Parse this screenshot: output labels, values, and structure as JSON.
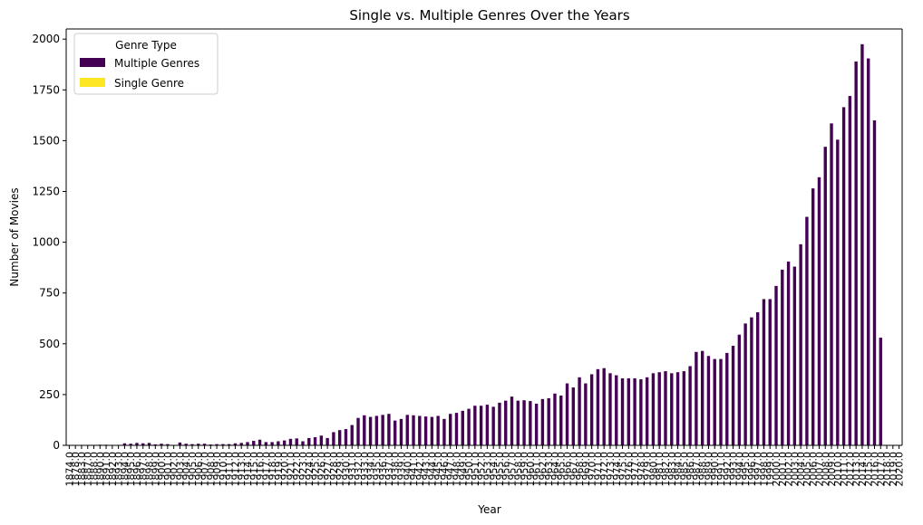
{
  "chart_data": {
    "type": "bar",
    "stacked": true,
    "title": "Single vs. Multiple Genres Over the Years",
    "xlabel": "Year",
    "ylabel": "Number of Movies",
    "ylim": [
      0,
      2050
    ],
    "yticks": [
      0,
      250,
      500,
      750,
      1000,
      1250,
      1500,
      1750,
      2000
    ],
    "grid": false,
    "legend": {
      "title": "Genre Type",
      "placement": "top-left"
    },
    "categories": [
      "1874.0",
      "1878.0",
      "1883.0",
      "1887.0",
      "1888.0",
      "1890.0",
      "1891.0",
      "1892.0",
      "1893.0",
      "1894.0",
      "1895.0",
      "1896.0",
      "1897.0",
      "1898.0",
      "1899.0",
      "1900.0",
      "1901.0",
      "1902.0",
      "1903.0",
      "1904.0",
      "1905.0",
      "1906.0",
      "1907.0",
      "1908.0",
      "1909.0",
      "1910.0",
      "1911.0",
      "1912.0",
      "1913.0",
      "1914.0",
      "1915.0",
      "1916.0",
      "1917.0",
      "1918.0",
      "1919.0",
      "1920.0",
      "1921.0",
      "1922.0",
      "1923.0",
      "1924.0",
      "1925.0",
      "1926.0",
      "1927.0",
      "1928.0",
      "1929.0",
      "1930.0",
      "1931.0",
      "1932.0",
      "1933.0",
      "1934.0",
      "1935.0",
      "1936.0",
      "1937.0",
      "1938.0",
      "1939.0",
      "1940.0",
      "1941.0",
      "1942.0",
      "1943.0",
      "1944.0",
      "1945.0",
      "1946.0",
      "1947.0",
      "1948.0",
      "1949.0",
      "1950.0",
      "1951.0",
      "1952.0",
      "1953.0",
      "1954.0",
      "1955.0",
      "1956.0",
      "1957.0",
      "1958.0",
      "1959.0",
      "1960.0",
      "1961.0",
      "1962.0",
      "1963.0",
      "1964.0",
      "1965.0",
      "1966.0",
      "1967.0",
      "1968.0",
      "1969.0",
      "1970.0",
      "1971.0",
      "1972.0",
      "1973.0",
      "1974.0",
      "1975.0",
      "1976.0",
      "1977.0",
      "1978.0",
      "1979.0",
      "1980.0",
      "1981.0",
      "1982.0",
      "1983.0",
      "1984.0",
      "1985.0",
      "1986.0",
      "1987.0",
      "1988.0",
      "1989.0",
      "1990.0",
      "1991.0",
      "1992.0",
      "1993.0",
      "1994.0",
      "1995.0",
      "1996.0",
      "1997.0",
      "1998.0",
      "1999.0",
      "2000.0",
      "2001.0",
      "2002.0",
      "2003.0",
      "2004.0",
      "2005.0",
      "2006.0",
      "2007.0",
      "2008.0",
      "2009.0",
      "2010.0",
      "2011.0",
      "2012.0",
      "2013.0",
      "2014.0",
      "2015.0",
      "2016.0",
      "2017.0",
      "2018.0",
      "2019.0",
      "2020.0"
    ],
    "series": [
      {
        "name": "Multiple Genres",
        "color": "#440154",
        "values": [
          0,
          0,
          0,
          0,
          0,
          3,
          3,
          2,
          0,
          10,
          8,
          12,
          10,
          12,
          5,
          8,
          6,
          2,
          14,
          8,
          6,
          8,
          8,
          4,
          6,
          6,
          6,
          10,
          12,
          16,
          22,
          28,
          16,
          16,
          20,
          24,
          32,
          34,
          20,
          36,
          40,
          48,
          36,
          65,
          75,
          80,
          100,
          135,
          148,
          140,
          145,
          150,
          155,
          122,
          130,
          150,
          148,
          145,
          142,
          140,
          145,
          130,
          155,
          160,
          170,
          180,
          195,
          195,
          200,
          190,
          210,
          220,
          240,
          220,
          222,
          218,
          205,
          228,
          232,
          255,
          245,
          305,
          285,
          335,
          305,
          350,
          375,
          380,
          355,
          345,
          330,
          330,
          330,
          325,
          335,
          355,
          360,
          365,
          355,
          360,
          365,
          390,
          460,
          465,
          440,
          425,
          425,
          455,
          490,
          545,
          600,
          630,
          655,
          720,
          720,
          785,
          865,
          905,
          880,
          990,
          1125,
          1265,
          1320,
          1470,
          1585,
          1505,
          1665,
          1720,
          1890,
          1975,
          1905,
          1600,
          530,
          0,
          0,
          0
        ]
      },
      {
        "name": "Single Genre",
        "color": "#fde725",
        "values": [
          0,
          0,
          0,
          0,
          0,
          0,
          0,
          0,
          0,
          0,
          0,
          0,
          0,
          0,
          0,
          0,
          0,
          0,
          0,
          0,
          0,
          0,
          0,
          0,
          0,
          0,
          0,
          0,
          0,
          0,
          0,
          0,
          0,
          0,
          0,
          0,
          0,
          0,
          0,
          0,
          0,
          0,
          0,
          0,
          0,
          0,
          0,
          0,
          0,
          0,
          0,
          0,
          0,
          0,
          0,
          0,
          0,
          0,
          0,
          0,
          0,
          0,
          0,
          0,
          0,
          0,
          0,
          0,
          0,
          0,
          0,
          0,
          0,
          0,
          0,
          0,
          0,
          0,
          0,
          0,
          0,
          0,
          0,
          0,
          0,
          0,
          0,
          0,
          0,
          0,
          0,
          0,
          0,
          0,
          0,
          0,
          0,
          0,
          0,
          0,
          0,
          0,
          0,
          0,
          0,
          0,
          0,
          0,
          0,
          0,
          0,
          0,
          0,
          0,
          0,
          0,
          0,
          0,
          0,
          0,
          0,
          0,
          0,
          0,
          0,
          0,
          0,
          0,
          0,
          0,
          0,
          0,
          0,
          0,
          0,
          0
        ]
      }
    ]
  }
}
